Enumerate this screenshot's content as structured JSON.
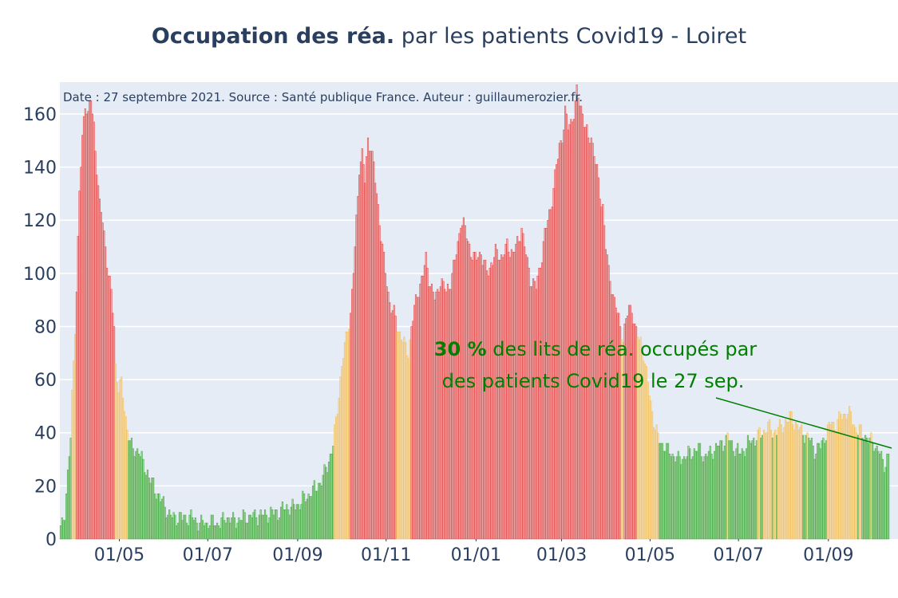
{
  "chart_data": {
    "type": "bar",
    "title_bold": "Occupation des réa.",
    "title_rest": " par les patients Covid19 - Loiret",
    "xlabel": "",
    "ylabel": "",
    "ylim": [
      0,
      172
    ],
    "yticks": [
      0,
      20,
      40,
      60,
      80,
      100,
      120,
      140,
      160
    ],
    "grid": true,
    "xtick_labels": [
      "01/05",
      "01/07",
      "01/09",
      "01/11",
      "01/01",
      "01/03",
      "01/05",
      "01/07",
      "01/09"
    ],
    "xtick_positions_days": [
      41,
      102,
      164,
      225,
      287,
      346,
      407,
      468,
      530
    ],
    "x_range_days": [
      0,
      578
    ],
    "note": "Date : 27 septembre 2021. Source : Santé publique France. Auteur : guillaumerozier.fr.",
    "color_thresholds": {
      "green_below": 40,
      "yellow_below": 80
    },
    "colors": {
      "green": "#45a845",
      "yellow": "#f0c060",
      "red": "#e04c4c",
      "green_fill": "#a7d8a0",
      "yellow_fill": "#f6ddb0",
      "red_fill": "#f2b3b3"
    },
    "series_keyframes": [
      [
        0,
        3
      ],
      [
        3,
        10
      ],
      [
        5,
        25
      ],
      [
        7,
        38
      ],
      [
        8,
        53
      ],
      [
        10,
        80
      ],
      [
        11,
        95
      ],
      [
        13,
        130
      ],
      [
        15,
        150
      ],
      [
        17,
        165
      ],
      [
        19,
        160
      ],
      [
        21,
        165
      ],
      [
        23,
        155
      ],
      [
        25,
        140
      ],
      [
        27,
        125
      ],
      [
        29,
        120
      ],
      [
        31,
        110
      ],
      [
        33,
        100
      ],
      [
        35,
        92
      ],
      [
        37,
        80
      ],
      [
        38,
        65
      ],
      [
        40,
        57
      ],
      [
        42,
        58
      ],
      [
        44,
        50
      ],
      [
        46,
        42
      ],
      [
        48,
        36
      ],
      [
        50,
        34
      ],
      [
        54,
        33
      ],
      [
        56,
        30
      ],
      [
        60,
        25
      ],
      [
        62,
        22
      ],
      [
        66,
        18
      ],
      [
        70,
        14
      ],
      [
        74,
        10
      ],
      [
        76,
        9
      ],
      [
        80,
        8
      ],
      [
        90,
        8
      ],
      [
        94,
        7
      ],
      [
        96,
        6
      ],
      [
        110,
        6
      ],
      [
        114,
        8
      ],
      [
        120,
        7
      ],
      [
        126,
        8
      ],
      [
        140,
        9
      ],
      [
        150,
        10
      ],
      [
        156,
        12
      ],
      [
        160,
        12
      ],
      [
        166,
        14
      ],
      [
        170,
        16
      ],
      [
        174,
        18
      ],
      [
        180,
        22
      ],
      [
        184,
        28
      ],
      [
        188,
        35
      ],
      [
        190,
        45
      ],
      [
        192,
        55
      ],
      [
        194,
        65
      ],
      [
        196,
        72
      ],
      [
        198,
        80
      ],
      [
        200,
        85
      ],
      [
        202,
        100
      ],
      [
        204,
        120
      ],
      [
        206,
        140
      ],
      [
        208,
        145
      ],
      [
        210,
        135
      ],
      [
        212,
        150
      ],
      [
        214,
        148
      ],
      [
        216,
        140
      ],
      [
        218,
        130
      ],
      [
        220,
        120
      ],
      [
        222,
        110
      ],
      [
        224,
        100
      ],
      [
        226,
        92
      ],
      [
        228,
        88
      ],
      [
        230,
        85
      ],
      [
        232,
        80
      ],
      [
        234,
        78
      ],
      [
        236,
        75
      ],
      [
        238,
        72
      ],
      [
        240,
        70
      ],
      [
        242,
        80
      ],
      [
        244,
        86
      ],
      [
        246,
        92
      ],
      [
        248,
        96
      ],
      [
        250,
        100
      ],
      [
        252,
        105
      ],
      [
        254,
        98
      ],
      [
        256,
        95
      ],
      [
        258,
        90
      ],
      [
        260,
        92
      ],
      [
        262,
        98
      ],
      [
        264,
        96
      ],
      [
        266,
        92
      ],
      [
        268,
        95
      ],
      [
        270,
        100
      ],
      [
        274,
        110
      ],
      [
        276,
        120
      ],
      [
        278,
        118
      ],
      [
        282,
        110
      ],
      [
        286,
        105
      ],
      [
        290,
        108
      ],
      [
        294,
        100
      ],
      [
        298,
        105
      ],
      [
        300,
        108
      ],
      [
        304,
        106
      ],
      [
        308,
        110
      ],
      [
        312,
        108
      ],
      [
        316,
        112
      ],
      [
        318,
        118
      ],
      [
        320,
        110
      ],
      [
        324,
        98
      ],
      [
        328,
        95
      ],
      [
        330,
        100
      ],
      [
        334,
        115
      ],
      [
        338,
        125
      ],
      [
        342,
        140
      ],
      [
        344,
        148
      ],
      [
        346,
        152
      ],
      [
        348,
        160
      ],
      [
        350,
        155
      ],
      [
        354,
        160
      ],
      [
        356,
        168
      ],
      [
        358,
        165
      ],
      [
        360,
        160
      ],
      [
        362,
        155
      ],
      [
        364,
        150
      ],
      [
        366,
        152
      ],
      [
        368,
        145
      ],
      [
        370,
        138
      ],
      [
        372,
        130
      ],
      [
        374,
        125
      ],
      [
        376,
        110
      ],
      [
        378,
        100
      ],
      [
        380,
        95
      ],
      [
        382,
        90
      ],
      [
        384,
        85
      ],
      [
        386,
        80
      ],
      [
        388,
        76
      ],
      [
        390,
        82
      ],
      [
        392,
        86
      ],
      [
        394,
        88
      ],
      [
        396,
        80
      ],
      [
        398,
        76
      ],
      [
        400,
        74
      ],
      [
        402,
        70
      ],
      [
        404,
        62
      ],
      [
        406,
        55
      ],
      [
        408,
        48
      ],
      [
        410,
        42
      ],
      [
        412,
        38
      ],
      [
        416,
        35
      ],
      [
        420,
        33
      ],
      [
        426,
        30
      ],
      [
        434,
        32
      ],
      [
        440,
        34
      ],
      [
        444,
        31
      ],
      [
        450,
        33
      ],
      [
        456,
        36
      ],
      [
        460,
        38
      ],
      [
        464,
        35
      ],
      [
        468,
        32
      ],
      [
        472,
        34
      ],
      [
        476,
        37
      ],
      [
        480,
        38
      ],
      [
        484,
        40
      ],
      [
        488,
        42
      ],
      [
        492,
        40
      ],
      [
        496,
        42
      ],
      [
        500,
        44
      ],
      [
        504,
        46
      ],
      [
        508,
        42
      ],
      [
        512,
        40
      ],
      [
        516,
        38
      ],
      [
        518,
        36
      ],
      [
        520,
        33
      ],
      [
        524,
        35
      ],
      [
        528,
        40
      ],
      [
        532,
        44
      ],
      [
        534,
        42
      ],
      [
        538,
        46
      ],
      [
        542,
        48
      ],
      [
        546,
        45
      ],
      [
        548,
        42
      ],
      [
        552,
        40
      ],
      [
        556,
        38
      ],
      [
        560,
        36
      ],
      [
        564,
        34
      ],
      [
        566,
        30
      ],
      [
        568,
        28
      ],
      [
        571,
        32
      ]
    ]
  },
  "annotation": {
    "value_bold": "30  %",
    "line1_rest": " des lits de réa. occupés par",
    "line2": "des patients Covid19 le 27 sep."
  }
}
